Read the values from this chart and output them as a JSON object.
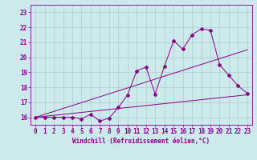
{
  "xlabel": "Windchill (Refroidissement éolien,°C)",
  "background_color": "#cce9ec",
  "grid_color": "#aacccc",
  "line_color": "#880088",
  "xlim": [
    -0.5,
    23.5
  ],
  "ylim": [
    15.5,
    23.5
  ],
  "xticks": [
    0,
    1,
    2,
    3,
    4,
    5,
    6,
    7,
    8,
    9,
    10,
    11,
    12,
    13,
    14,
    15,
    16,
    17,
    18,
    19,
    20,
    21,
    22,
    23
  ],
  "yticks": [
    16,
    17,
    18,
    19,
    20,
    21,
    22,
    23
  ],
  "line1_x": [
    0,
    1,
    2,
    3,
    4,
    5,
    6,
    7,
    8,
    9,
    10,
    11,
    12,
    13,
    14,
    15,
    16,
    17,
    18,
    19,
    20,
    21,
    22,
    23
  ],
  "line1_y": [
    16.0,
    16.0,
    16.0,
    16.0,
    16.0,
    15.9,
    16.2,
    15.75,
    15.95,
    16.65,
    17.5,
    19.1,
    19.35,
    17.55,
    19.4,
    21.1,
    20.55,
    21.5,
    21.9,
    21.8,
    19.5,
    18.8,
    18.1,
    17.6
  ],
  "line2_x": [
    0,
    23
  ],
  "line2_y": [
    16.0,
    20.5
  ],
  "line3_x": [
    0,
    23
  ],
  "line3_y": [
    16.0,
    17.5
  ],
  "tick_fontsize": 5.5,
  "xlabel_fontsize": 5.5
}
